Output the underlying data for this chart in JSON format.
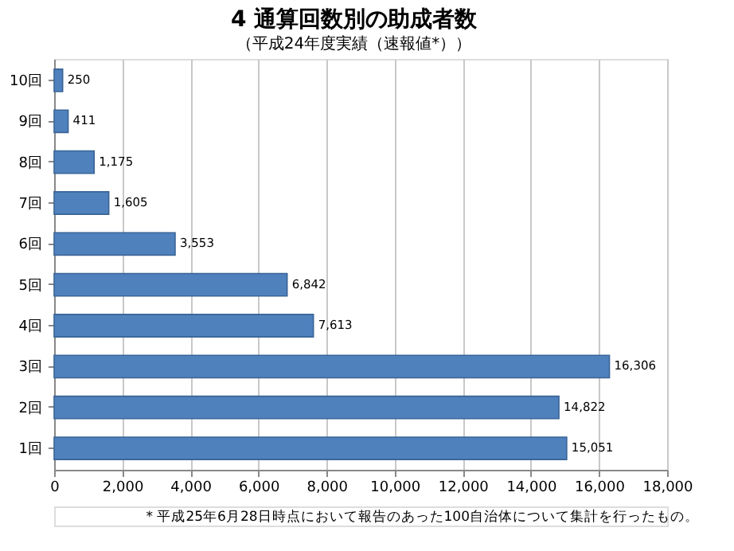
{
  "chart_data": {
    "type": "bar",
    "orientation": "horizontal",
    "title": "4  通算回数別の助成者数",
    "subtitle": "（平成24年度実績（速報値*））",
    "categories": [
      "10回",
      "9回",
      "8回",
      "7回",
      "6回",
      "5回",
      "4回",
      "3回",
      "2回",
      "1回"
    ],
    "values": [
      250,
      411,
      1175,
      1605,
      3553,
      6842,
      7613,
      16306,
      14822,
      15051
    ],
    "color": "#4f81bd",
    "xlim": [
      0,
      18000
    ],
    "xticks": [
      0,
      {
        "value": 2000,
        "label": "2,000"
      },
      {
        "value": 4000,
        "label": "4,000"
      },
      {
        "value": 6000,
        "label": "6,000"
      },
      {
        "value": 8000,
        "label": "8,000"
      },
      {
        "value": 10000,
        "label": "10,000"
      },
      {
        "value": 12000,
        "label": "12,000"
      },
      {
        "value": 14000,
        "label": "14,000"
      },
      {
        "value": 16000,
        "label": "16,000"
      },
      {
        "value": 18000,
        "label": "18,000"
      }
    ],
    "grid": "x",
    "value_labels": [
      "250",
      "411",
      "1,175",
      "1,605",
      "3,553",
      "6,842",
      "7,613",
      "16,306",
      "14,822",
      "15,051"
    ],
    "annotations": [
      "*  平成25年6月28日時点において報告のあった100自治体について集計を行ったもの。"
    ]
  }
}
